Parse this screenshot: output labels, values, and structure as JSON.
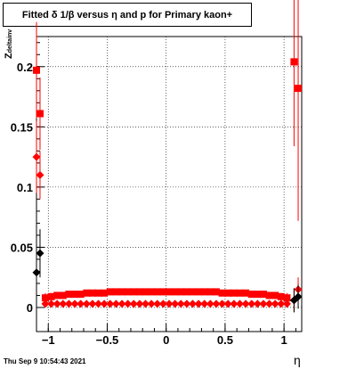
{
  "title": "Fitted δ 1/β versus η and p for Primary kaon+",
  "timestamp": "Thu Sep  9 10:54:43 2021",
  "chart_data": {
    "type": "scatter",
    "title": "Fitted δ 1/β versus η and p for Primary kaon+",
    "xlabel": "η",
    "ylabel": "Z",
    "ylabel_sub": "deltainv",
    "xlim": [
      -1.1,
      1.15
    ],
    "ylim": [
      -0.02,
      0.225
    ],
    "x_ticks": [
      -1,
      -0.5,
      0,
      0.5,
      1
    ],
    "x_tick_labels": [
      "−1",
      "−0.5",
      "0",
      "0.5",
      "1"
    ],
    "y_ticks": [
      0,
      0.05,
      0.1,
      0.15,
      0.2
    ],
    "y_tick_labels": [
      "0",
      "0.05",
      "0.1",
      "0.15",
      "0.2"
    ],
    "grid": true,
    "series": [
      {
        "marker": "square",
        "color": "#ff0000",
        "x": [
          -1.1,
          -1.07,
          -1.025,
          -0.975,
          -0.925,
          -0.875,
          -0.825,
          -0.775,
          -0.725,
          -0.675,
          -0.625,
          -0.575,
          -0.525,
          -0.475,
          -0.425,
          -0.375,
          -0.325,
          -0.275,
          -0.225,
          -0.175,
          -0.125,
          -0.075,
          -0.025,
          0.025,
          0.075,
          0.125,
          0.175,
          0.225,
          0.275,
          0.325,
          0.375,
          0.425,
          0.475,
          0.525,
          0.575,
          0.625,
          0.675,
          0.725,
          0.775,
          0.825,
          0.875,
          0.925,
          0.975,
          1.025,
          1.085,
          1.12
        ],
        "y": [
          0.197,
          0.161,
          0.008,
          0.009,
          0.01,
          0.01,
          0.011,
          0.011,
          0.011,
          0.012,
          0.012,
          0.012,
          0.012,
          0.013,
          0.013,
          0.013,
          0.013,
          0.013,
          0.013,
          0.013,
          0.013,
          0.013,
          0.013,
          0.013,
          0.013,
          0.013,
          0.013,
          0.013,
          0.013,
          0.013,
          0.013,
          0.013,
          0.012,
          0.012,
          0.012,
          0.012,
          0.012,
          0.011,
          0.011,
          0.011,
          0.01,
          0.01,
          0.009,
          0.008,
          0.204,
          0.182
        ],
        "err": [
          0.04,
          0.03,
          0.004,
          0.003,
          0.002,
          0.002,
          0.002,
          0.002,
          0.002,
          0.002,
          0.002,
          0.002,
          0.002,
          0.002,
          0.002,
          0.002,
          0.002,
          0.002,
          0.002,
          0.002,
          0.002,
          0.002,
          0.002,
          0.002,
          0.002,
          0.002,
          0.002,
          0.002,
          0.002,
          0.002,
          0.002,
          0.002,
          0.002,
          0.002,
          0.002,
          0.002,
          0.002,
          0.002,
          0.002,
          0.002,
          0.002,
          0.002,
          0.003,
          0.004,
          0.07,
          0.11
        ]
      },
      {
        "marker": "diamond",
        "color": "#ff0000",
        "x": [
          -1.1,
          -1.07,
          -1.025,
          -0.975,
          -0.925,
          -0.875,
          -0.825,
          -0.775,
          -0.725,
          -0.675,
          -0.625,
          -0.575,
          -0.525,
          -0.475,
          -0.425,
          -0.375,
          -0.325,
          -0.275,
          -0.225,
          -0.175,
          -0.125,
          -0.075,
          -0.025,
          0.025,
          0.075,
          0.125,
          0.175,
          0.225,
          0.275,
          0.325,
          0.375,
          0.425,
          0.475,
          0.525,
          0.575,
          0.625,
          0.675,
          0.725,
          0.775,
          0.825,
          0.875,
          0.925,
          0.975,
          1.025,
          1.085,
          1.12
        ],
        "y": [
          0.125,
          0.11,
          0.003,
          0.003,
          0.003,
          0.003,
          0.003,
          0.003,
          0.003,
          0.003,
          0.003,
          0.003,
          0.003,
          0.003,
          0.003,
          0.003,
          0.003,
          0.003,
          0.003,
          0.003,
          0.003,
          0.003,
          0.003,
          0.003,
          0.003,
          0.003,
          0.003,
          0.003,
          0.003,
          0.003,
          0.003,
          0.003,
          0.003,
          0.003,
          0.003,
          0.003,
          0.003,
          0.003,
          0.003,
          0.003,
          0.003,
          0.003,
          0.003,
          0.003,
          0.006,
          0.015
        ],
        "err": [
          0.03,
          0.02,
          0.002,
          0.001,
          0.001,
          0.001,
          0.001,
          0.001,
          0.001,
          0.001,
          0.001,
          0.001,
          0.001,
          0.001,
          0.001,
          0.001,
          0.001,
          0.001,
          0.001,
          0.001,
          0.001,
          0.001,
          0.001,
          0.001,
          0.001,
          0.001,
          0.001,
          0.001,
          0.001,
          0.001,
          0.001,
          0.001,
          0.001,
          0.001,
          0.001,
          0.001,
          0.001,
          0.001,
          0.001,
          0.001,
          0.001,
          0.001,
          0.001,
          0.002,
          0.01,
          0.01
        ]
      },
      {
        "marker": "diamond",
        "color": "#000000",
        "x": [
          -1.1,
          -1.07,
          1.085,
          1.12
        ],
        "y": [
          0.029,
          0.045,
          0.006,
          0.009
        ],
        "err": [
          0.02,
          0.02,
          0.01,
          0.01
        ]
      }
    ]
  }
}
